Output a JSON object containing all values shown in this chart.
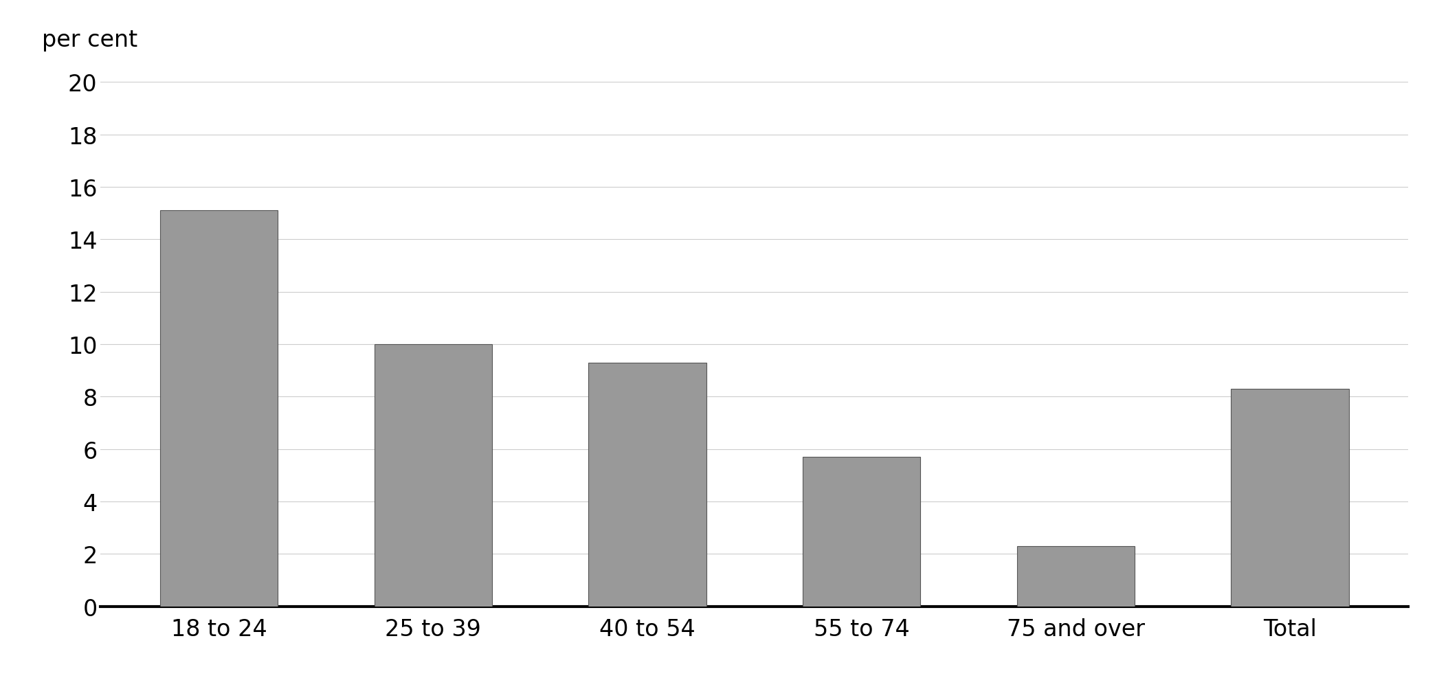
{
  "categories": [
    "18 to 24",
    "25 to 39",
    "40 to 54",
    "55 to 74",
    "75 and over",
    "Total"
  ],
  "values": [
    15.1,
    10.0,
    9.3,
    5.7,
    2.3,
    8.3
  ],
  "bar_color": "#999999",
  "bar_edge_color": "#555555",
  "ylabel": "per cent",
  "ylim": [
    0,
    20
  ],
  "yticks": [
    0,
    2,
    4,
    6,
    8,
    10,
    12,
    14,
    16,
    18,
    20
  ],
  "background_color": "#ffffff",
  "grid_color": "#cccccc",
  "ylabel_fontsize": 24,
  "tick_fontsize": 24,
  "xlabel_fontsize": 24,
  "bar_width": 0.55
}
